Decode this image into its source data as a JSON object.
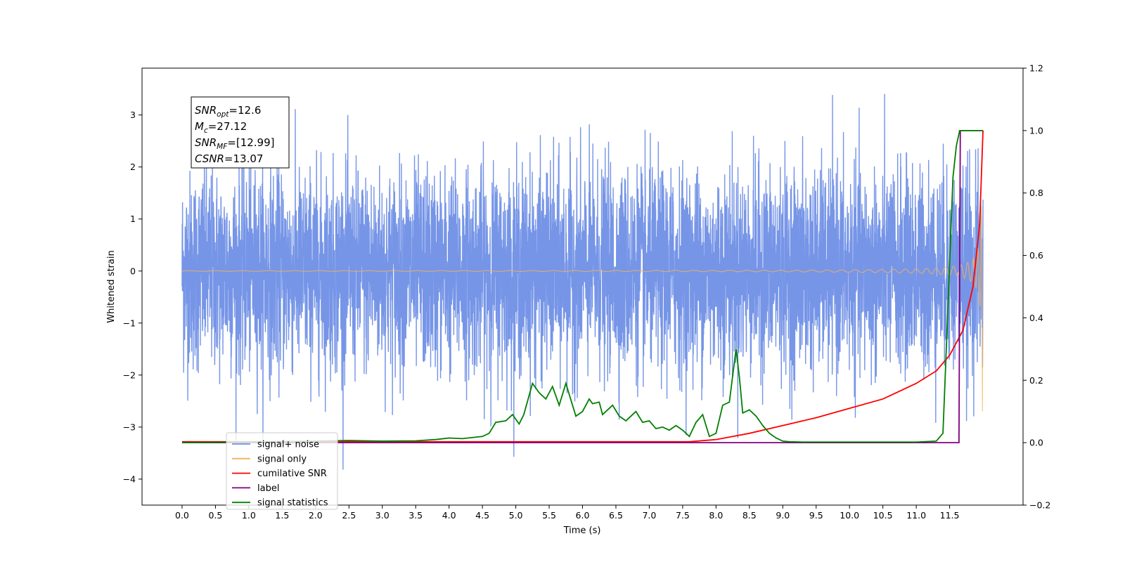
{
  "chart_data": {
    "type": "line",
    "title": "",
    "xlabel": "Time (s)",
    "ylabel": "Whitened strain",
    "y2label": "",
    "xlim": [
      -0.6,
      12.6
    ],
    "ylim": [
      -4.5,
      3.9
    ],
    "y2lim": [
      -0.2,
      1.2
    ],
    "x_ticks": [
      0.0,
      0.5,
      1.0,
      1.5,
      2.0,
      2.5,
      3.0,
      3.5,
      4.0,
      4.5,
      5.0,
      5.5,
      6.0,
      6.5,
      7.0,
      7.5,
      8.0,
      8.5,
      9.0,
      9.5,
      10.0,
      10.5,
      11.0,
      11.5
    ],
    "x_tick_labels": [
      "0.0",
      "0.5",
      "1.0",
      "1.5",
      "2.0",
      "2.5",
      "3.0",
      "3.5",
      "4.0",
      "4.5",
      "5.0",
      "5.5",
      "6.0",
      "6.5",
      "7.0",
      "7.5",
      "8.0",
      "8.5",
      "9.0",
      "9.5",
      "10.0",
      "10.5",
      "11.0",
      "11.5"
    ],
    "y_ticks": [
      3,
      2,
      1,
      0,
      -1,
      -2,
      -3,
      -4
    ],
    "y_tick_labels": [
      "3",
      "2",
      "1",
      "0",
      "−1",
      "−2",
      "−3",
      "−4"
    ],
    "y2_ticks": [
      1.2,
      1.0,
      0.8,
      0.6,
      0.4,
      0.2,
      0.0,
      -0.2
    ],
    "y2_tick_labels": [
      "1.2",
      "1.0",
      "0.8",
      "0.6",
      "0.4",
      "0.2",
      "0.0",
      "−0.2"
    ],
    "stats_box": [
      {
        "base": "SNR",
        "sub": "opt",
        "value": "=12.6"
      },
      {
        "base": "M",
        "sub": "c",
        "value": "=27.12"
      },
      {
        "base": "SNR",
        "sub": "MF",
        "value": "=[12.99]"
      },
      {
        "base": "CSNR",
        "sub": "",
        "value": "=13.07"
      }
    ],
    "legend_position": "lower-left",
    "series": [
      {
        "name": "signal+ noise",
        "color": "#6f8fe6",
        "axis": "left",
        "description": "Gaussian whitened noise ~ amplitude ±2.5, spikes to 3.5 near x=8.85",
        "noise_range": [
          -4.1,
          3.5
        ],
        "x_range": [
          0.0,
          12.0
        ]
      },
      {
        "name": "signal only",
        "color": "#f5b35a",
        "axis": "left",
        "description": "chirp, flat until ~8, grows to ±2.7 at 12.0",
        "x_range": [
          0.0,
          12.0
        ],
        "peak_amplitude": 2.7
      },
      {
        "name": "cumilative SNR",
        "color": "#ff0000",
        "axis": "right",
        "x": [
          0.0,
          7.6,
          8.0,
          8.5,
          9.0,
          9.5,
          10.0,
          10.5,
          11.0,
          11.3,
          11.5,
          11.7,
          11.85,
          11.95,
          12.0
        ],
        "values": [
          0.003,
          0.003,
          0.01,
          0.03,
          0.055,
          0.08,
          0.11,
          0.14,
          0.19,
          0.23,
          0.28,
          0.36,
          0.5,
          0.7,
          1.0
        ]
      },
      {
        "name": "label",
        "color": "#800080",
        "axis": "right",
        "x": [
          0.0,
          11.64,
          11.64,
          11.66,
          11.66,
          12.0
        ],
        "values": [
          0.0,
          0.0,
          0.0,
          1.0,
          1.0,
          1.0
        ]
      },
      {
        "name": "signal statistics",
        "color": "#008000",
        "axis": "right",
        "x": [
          0.0,
          2.0,
          2.5,
          3.0,
          3.5,
          3.8,
          4.0,
          4.2,
          4.5,
          4.6,
          4.7,
          4.85,
          4.95,
          5.05,
          5.12,
          5.25,
          5.35,
          5.45,
          5.55,
          5.65,
          5.75,
          5.9,
          6.0,
          6.1,
          6.15,
          6.25,
          6.3,
          6.45,
          6.55,
          6.65,
          6.8,
          6.9,
          7.0,
          7.1,
          7.2,
          7.3,
          7.4,
          7.5,
          7.6,
          7.7,
          7.8,
          7.9,
          8.0,
          8.1,
          8.2,
          8.3,
          8.35,
          8.4,
          8.5,
          8.6,
          8.7,
          8.8,
          8.9,
          9.0,
          9.1,
          9.3,
          10.0,
          11.0,
          11.3,
          11.4,
          11.45,
          11.55,
          11.6,
          11.65,
          11.7,
          11.8,
          11.9,
          12.0
        ],
        "values": [
          0.0,
          0.005,
          0.007,
          0.005,
          0.006,
          0.01,
          0.015,
          0.013,
          0.02,
          0.03,
          0.065,
          0.07,
          0.09,
          0.06,
          0.09,
          0.19,
          0.16,
          0.14,
          0.18,
          0.12,
          0.19,
          0.085,
          0.1,
          0.14,
          0.125,
          0.13,
          0.09,
          0.12,
          0.085,
          0.07,
          0.1,
          0.065,
          0.07,
          0.045,
          0.05,
          0.04,
          0.055,
          0.04,
          0.02,
          0.065,
          0.09,
          0.02,
          0.03,
          0.12,
          0.13,
          0.3,
          0.21,
          0.095,
          0.105,
          0.085,
          0.055,
          0.03,
          0.015,
          0.005,
          0.003,
          0.002,
          0.002,
          0.002,
          0.005,
          0.03,
          0.3,
          0.85,
          0.95,
          1.0,
          1.0,
          1.0,
          1.0,
          1.0
        ]
      }
    ]
  }
}
